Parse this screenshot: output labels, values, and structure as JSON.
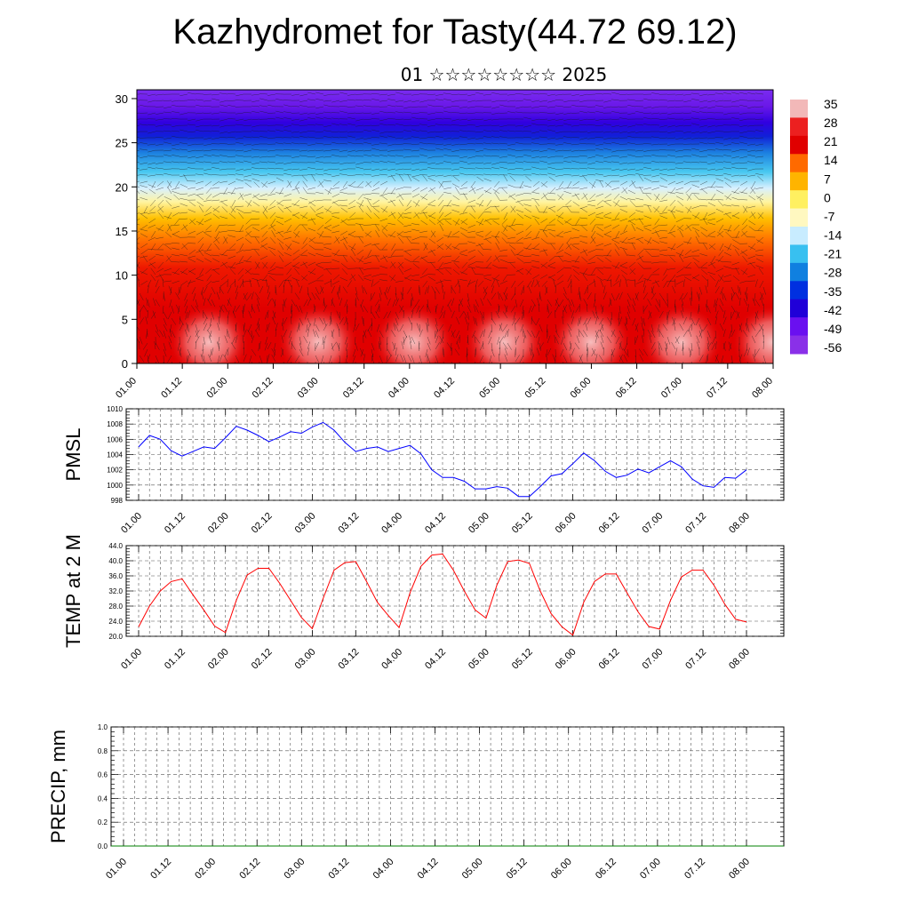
{
  "title": "Kazhydromet for Tasty(44.72 69.12)",
  "subtitle": "01 ☆☆☆☆☆☆☆☆ 2025",
  "time_ticks": [
    "01.00",
    "01.12",
    "02.00",
    "02.12",
    "03.00",
    "03.12",
    "04.00",
    "04.12",
    "05.00",
    "05.12",
    "06.00",
    "06.12",
    "07.00",
    "07.12",
    "08.00"
  ],
  "chart_data": [
    {
      "type": "heatmap",
      "name": "cross-section",
      "x_ticks": [
        "01.00",
        "01.12",
        "02.00",
        "02.12",
        "03.00",
        "03.12",
        "04.00",
        "04.12",
        "05.00",
        "05.12",
        "06.00",
        "06.12",
        "07.00",
        "07.12",
        "08.00"
      ],
      "y_ticks": [
        0,
        5,
        10,
        15,
        20,
        25,
        30
      ],
      "ylim": [
        0,
        31
      ],
      "colorbar": {
        "labels": [
          "35",
          "28",
          "21",
          "14",
          "7",
          "0",
          "-7",
          "-14",
          "-21",
          "-28",
          "-35",
          "-42",
          "-49",
          "-56"
        ],
        "colors": [
          "#f2b8b8",
          "#ec2020",
          "#e00000",
          "#ff6a00",
          "#ffb400",
          "#fff060",
          "#fff8c0",
          "#c8ecff",
          "#38c0f0",
          "#1080e0",
          "#0030e0",
          "#2000d8",
          "#6a10f0",
          "#8a30e8"
        ]
      },
      "field": "temperature with wind vectors"
    },
    {
      "type": "line",
      "ylabel": "PMSL",
      "ylim": [
        998,
        1010
      ],
      "y_ticks": [
        "998",
        "1000",
        "1002",
        "1004",
        "1006",
        "1008",
        "1010"
      ],
      "x_ticks": [
        "01.00",
        "01.12",
        "02.00",
        "02.12",
        "03.00",
        "03.12",
        "04.00",
        "04.12",
        "05.00",
        "05.12",
        "06.00",
        "06.12",
        "07.00",
        "07.12",
        "08.00"
      ],
      "color": "#0000ff",
      "x_hours": [
        0,
        3,
        6,
        9,
        12,
        15,
        18,
        21,
        24,
        27,
        30,
        33,
        36,
        39,
        42,
        45,
        48,
        51,
        54,
        57,
        60,
        63,
        66,
        69,
        72,
        75,
        78,
        81,
        84,
        87,
        90,
        93,
        96,
        99,
        102,
        105,
        108,
        111,
        114,
        117,
        120,
        123,
        126,
        129,
        132,
        135,
        138,
        141,
        144,
        147,
        150,
        153,
        156,
        159,
        162,
        165,
        168
      ],
      "values": [
        1005,
        1006.5,
        1006,
        1004.5,
        1003.8,
        1004.4,
        1005,
        1004.8,
        1006.2,
        1007.7,
        1007.2,
        1006.5,
        1005.7,
        1006.3,
        1007,
        1006.8,
        1007.6,
        1008.2,
        1007.2,
        1005.6,
        1004.4,
        1004.8,
        1005,
        1004.4,
        1004.8,
        1005.2,
        1004.1,
        1002,
        1001,
        1001,
        1000.5,
        999.5,
        999.5,
        999.8,
        999.6,
        998.5,
        998.5,
        999.8,
        1001.2,
        1001.5,
        1002.8,
        1004.2,
        1003.2,
        1001.8,
        1001,
        1001.3,
        1002.1,
        1001.6,
        1002.4,
        1003.2,
        1002.4,
        1000.8,
        999.9,
        999.7,
        1001,
        1000.9,
        1002
      ]
    },
    {
      "type": "line",
      "ylabel": "TEMP at 2 M",
      "ylim": [
        20,
        44
      ],
      "y_ticks": [
        "20.0",
        "24.0",
        "28.0",
        "32.0",
        "36.0",
        "40.0",
        "44.0"
      ],
      "x_ticks": [
        "01.00",
        "01.12",
        "02.00",
        "02.12",
        "03.00",
        "03.12",
        "04.00",
        "04.12",
        "05.00",
        "05.12",
        "06.00",
        "06.12",
        "07.00",
        "07.12",
        "08.00"
      ],
      "color": "#ff0000",
      "x_hours": [
        0,
        3,
        6,
        9,
        12,
        15,
        18,
        21,
        24,
        27,
        30,
        33,
        36,
        39,
        42,
        45,
        48,
        51,
        54,
        57,
        60,
        63,
        66,
        69,
        72,
        75,
        78,
        81,
        84,
        87,
        90,
        93,
        96,
        99,
        102,
        105,
        108,
        111,
        114,
        117,
        120,
        123,
        126,
        129,
        132,
        135,
        138,
        141,
        144,
        147,
        150,
        153,
        156,
        159,
        162,
        165,
        168
      ],
      "values": [
        22.5,
        28,
        32,
        34.5,
        35.2,
        31,
        27,
        22.7,
        21,
        29.5,
        36.2,
        38,
        38,
        34,
        29.5,
        25,
        22,
        30,
        37.5,
        39.5,
        39.8,
        34.5,
        29,
        25.5,
        22.3,
        31.5,
        38.5,
        41.5,
        41.8,
        37.5,
        32,
        27,
        24.8,
        33.5,
        39.8,
        40.2,
        39.3,
        32,
        26,
        22.5,
        20.3,
        29,
        34.5,
        36.5,
        36.5,
        31.5,
        26.5,
        22.6,
        21.9,
        29.5,
        35.7,
        37.5,
        37.5,
        33.5,
        28.5,
        24.5,
        23.8
      ]
    },
    {
      "type": "line",
      "ylabel": "PRECIP, mm",
      "ylim": [
        0,
        1
      ],
      "y_ticks": [
        "0.0",
        "0.2",
        "0.4",
        "0.6",
        "0.8",
        "1.0"
      ],
      "x_ticks": [
        "01.00",
        "01.12",
        "02.00",
        "02.12",
        "03.00",
        "03.12",
        "04.00",
        "04.12",
        "05.00",
        "05.12",
        "06.00",
        "06.12",
        "07.00",
        "07.12",
        "08.00"
      ],
      "color": "#008000",
      "values": [
        0,
        0,
        0,
        0,
        0,
        0,
        0,
        0,
        0,
        0,
        0,
        0,
        0,
        0,
        0
      ]
    }
  ]
}
